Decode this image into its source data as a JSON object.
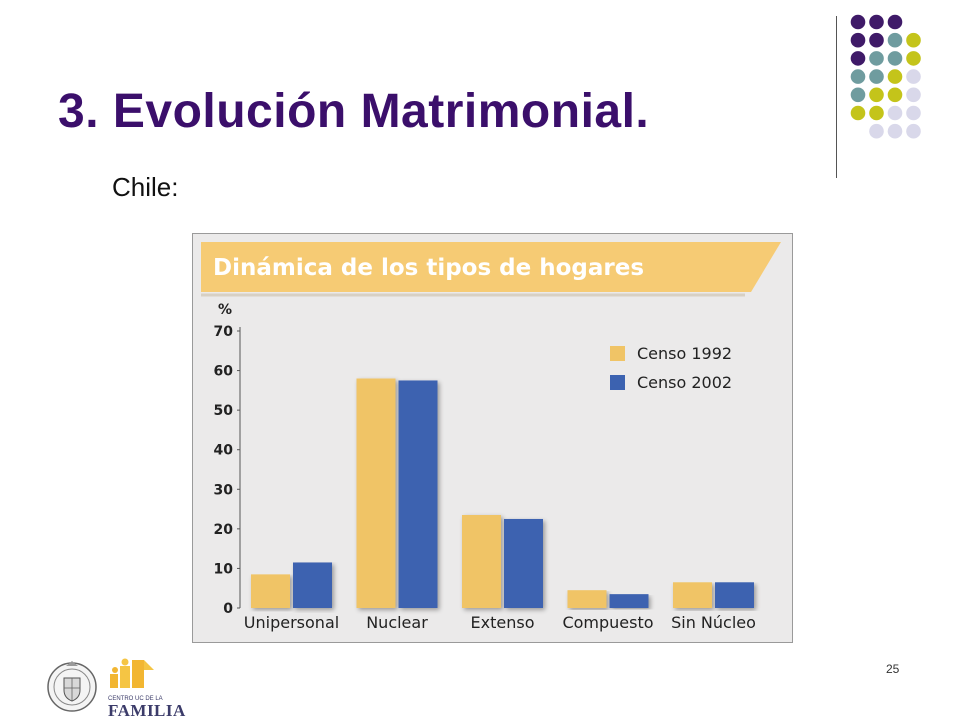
{
  "slide": {
    "title": "3. Evolución Matrimonial.",
    "subtitle": "Chile:",
    "page_number": "25"
  },
  "colors": {
    "title": "#3b0f6b",
    "dot_palette": [
      "#3f1a68",
      "#6f9c9f",
      "#c4c41a",
      "#d9d8ea"
    ],
    "series_1992": "#f0c466",
    "series_2002": "#3c62b0",
    "banner": "#f6cb74"
  },
  "icons": {
    "university_seal": "university-seal-icon",
    "familia_logo": "centro-uc-familia-logo"
  },
  "logo": {
    "familia_small": "CENTRO UC DE LA",
    "familia_big": "FAMILIA"
  },
  "chart_data": {
    "type": "bar",
    "title": "Dinámica de los tipos de hogares",
    "ylabel": "%",
    "ylim": [
      0,
      70
    ],
    "yticks": [
      0,
      10,
      20,
      30,
      40,
      50,
      60,
      70
    ],
    "grid": false,
    "legend_position": "top-right",
    "categories": [
      "Unipersonal",
      "Nuclear",
      "Extenso",
      "Compuesto",
      "Sin Núcleo"
    ],
    "series": [
      {
        "name": "Censo 1992",
        "values": [
          8.5,
          58,
          23.5,
          4.5,
          6.5
        ]
      },
      {
        "name": "Censo 2002",
        "values": [
          11.5,
          57.5,
          22.5,
          3.5,
          6.5
        ]
      }
    ]
  }
}
